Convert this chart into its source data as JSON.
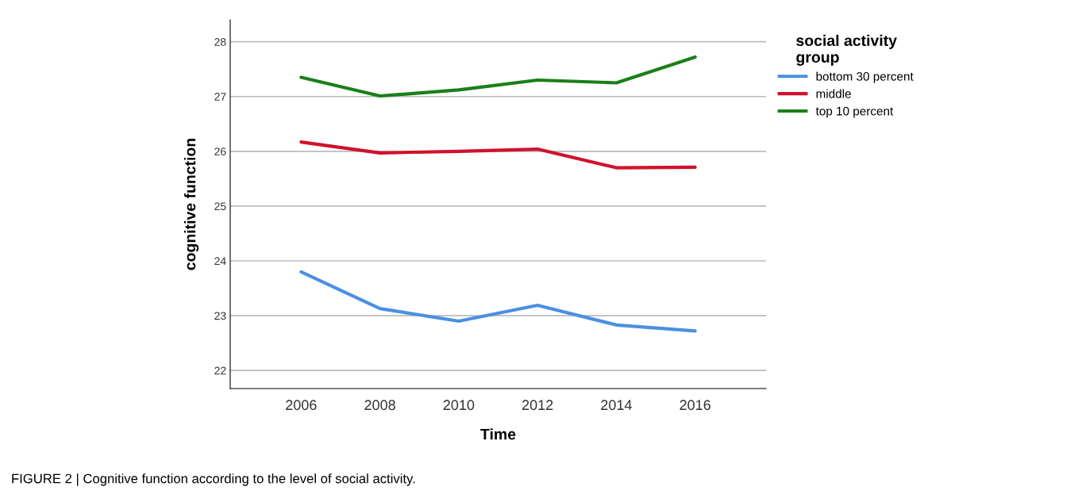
{
  "chart_data": {
    "type": "line",
    "xlabel": "Time",
    "ylabel": "cognitive function",
    "legend_title": "social activity\ngroup",
    "categories": [
      "2006",
      "2008",
      "2010",
      "2012",
      "2014",
      "2016"
    ],
    "series": [
      {
        "name": "bottom 30 percent",
        "color": "#4a90e2",
        "values": [
          23.8,
          23.13,
          22.9,
          23.19,
          22.83,
          22.72
        ]
      },
      {
        "name": "middle",
        "color": "#d0122c",
        "values": [
          26.17,
          25.97,
          26.0,
          26.04,
          25.7,
          25.71
        ]
      },
      {
        "name": "top 10 percent",
        "color": "#1a7f1a",
        "values": [
          27.35,
          27.01,
          27.12,
          27.3,
          27.25,
          27.72
        ]
      }
    ],
    "ylim": [
      21.67,
      28.4
    ],
    "yticks": [
      22,
      23,
      24,
      25,
      26,
      27,
      28
    ],
    "grid": "y",
    "legend": "top right",
    "marker": "none",
    "line_style": "solid",
    "annotations": [
      "FIGURE 2 | Cognitive function according to the level of social activity."
    ]
  }
}
